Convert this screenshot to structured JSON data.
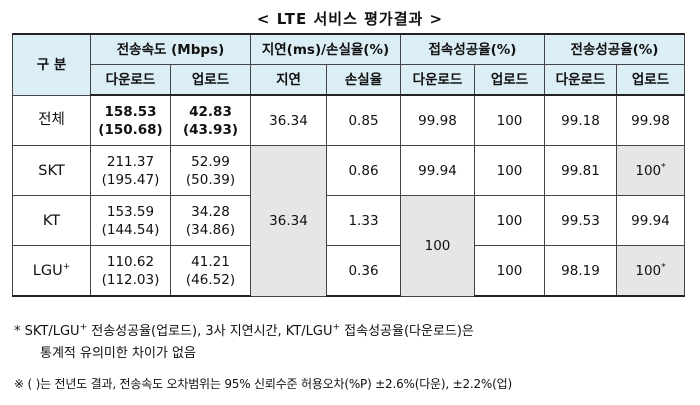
{
  "title": "< LTE 서비스 평가결과 >",
  "header": {
    "division": "구 분",
    "speed_group": "전송속도 (Mbps)",
    "latency_group": "지연(ms)/손실율(%)",
    "connect_group": "접속성공율(%)",
    "transfer_group": "전송성공율(%)",
    "download": "다운로드",
    "upload": "업로드",
    "latency": "지연",
    "loss": "손실율"
  },
  "rows": [
    {
      "name": "전체",
      "sup": "",
      "dl": "158.53",
      "dl_prev": "(150.68)",
      "ul": "42.83",
      "ul_prev": "(43.93)",
      "latency": "36.34",
      "loss": "0.85",
      "conn_dl": "99.98",
      "conn_ul": "100",
      "tr_dl": "99.18",
      "tr_ul": "99.98",
      "tr_ul_mark": ""
    },
    {
      "name": "SKT",
      "sup": "",
      "dl": "211.37",
      "dl_prev": "(195.47)",
      "ul": "52.99",
      "ul_prev": "(50.39)",
      "loss": "0.86",
      "conn_dl": "99.94",
      "conn_ul": "100",
      "tr_dl": "99.81",
      "tr_ul": "100",
      "tr_ul_mark": "*"
    },
    {
      "name": "KT",
      "sup": "",
      "dl": "153.59",
      "dl_prev": "(144.54)",
      "ul": "34.28",
      "ul_prev": "(34.86)",
      "loss": "1.33",
      "conn_ul": "100",
      "tr_dl": "99.53",
      "tr_ul": "99.94",
      "tr_ul_mark": ""
    },
    {
      "name": "LGU",
      "sup": "+",
      "dl": "110.62",
      "dl_prev": "(112.03)",
      "ul": "41.21",
      "ul_prev": "(46.52)",
      "loss": "0.36",
      "conn_ul": "100",
      "tr_dl": "98.19",
      "tr_ul": "100",
      "tr_ul_mark": "*"
    }
  ],
  "merged": {
    "latency_3co": "36.34",
    "conn_dl_kt_lgu": "100"
  },
  "notes": {
    "n1_prefix": "* SKT/LGU",
    "n1_sup1": "+",
    "n1_mid": " 전송성공율(업로드), 3사 지연시간, KT/LGU",
    "n1_sup2": "+",
    "n1_suffix": " 접속성공율(다운로드)은",
    "n1_line2": "통계적 유의미한 차이가 없음",
    "n2": "※ ( )는 전년도 결과, 전송속도 오차범위는 95% 신뢰수준 허용오차(%P) ±2.6%(다운), ±2.2%(업)"
  }
}
